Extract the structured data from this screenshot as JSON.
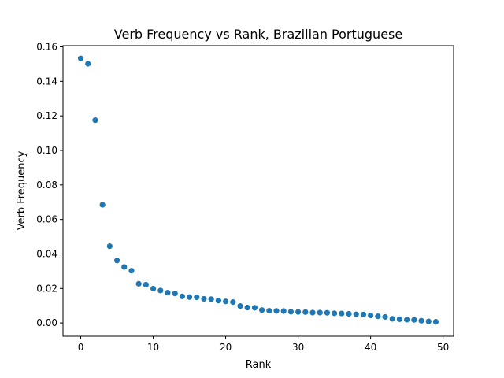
{
  "chart_data": {
    "type": "scatter",
    "title": "Verb Frequency vs Rank, Brazilian Portuguese",
    "xlabel": "Rank",
    "ylabel": "Verb Frequency",
    "xlim": [
      -2.45,
      51.45
    ],
    "ylim": [
      -0.0077,
      0.1607
    ],
    "xticks": [
      0,
      10,
      20,
      30,
      40,
      50
    ],
    "xtick_labels": [
      "0",
      "10",
      "20",
      "30",
      "40",
      "50"
    ],
    "yticks": [
      0.0,
      0.02,
      0.04,
      0.06,
      0.08,
      0.1,
      0.12,
      0.14,
      0.16
    ],
    "ytick_labels": [
      "0.00",
      "0.02",
      "0.04",
      "0.06",
      "0.08",
      "0.10",
      "0.12",
      "0.14",
      "0.16"
    ],
    "grid": false,
    "color": "#1f77b4",
    "x": [
      0,
      1,
      2,
      3,
      4,
      5,
      6,
      7,
      8,
      9,
      10,
      11,
      12,
      13,
      14,
      15,
      16,
      17,
      18,
      19,
      20,
      21,
      22,
      23,
      24,
      25,
      26,
      27,
      28,
      29,
      30,
      31,
      32,
      33,
      34,
      35,
      36,
      37,
      38,
      39,
      40,
      41,
      42,
      43,
      44,
      45,
      46,
      47,
      48,
      49
    ],
    "y": [
      0.1533,
      0.1502,
      0.1175,
      0.0685,
      0.0445,
      0.0362,
      0.0325,
      0.0303,
      0.0227,
      0.0222,
      0.0199,
      0.0188,
      0.0176,
      0.0171,
      0.0154,
      0.015,
      0.0149,
      0.014,
      0.0138,
      0.013,
      0.0125,
      0.0121,
      0.0098,
      0.0089,
      0.0088,
      0.0075,
      0.0071,
      0.007,
      0.0069,
      0.0065,
      0.0064,
      0.0063,
      0.006,
      0.006,
      0.0059,
      0.0056,
      0.0055,
      0.0053,
      0.005,
      0.0049,
      0.0044,
      0.0039,
      0.0035,
      0.0024,
      0.0022,
      0.0019,
      0.0018,
      0.0013,
      0.0009,
      0.0007
    ]
  }
}
